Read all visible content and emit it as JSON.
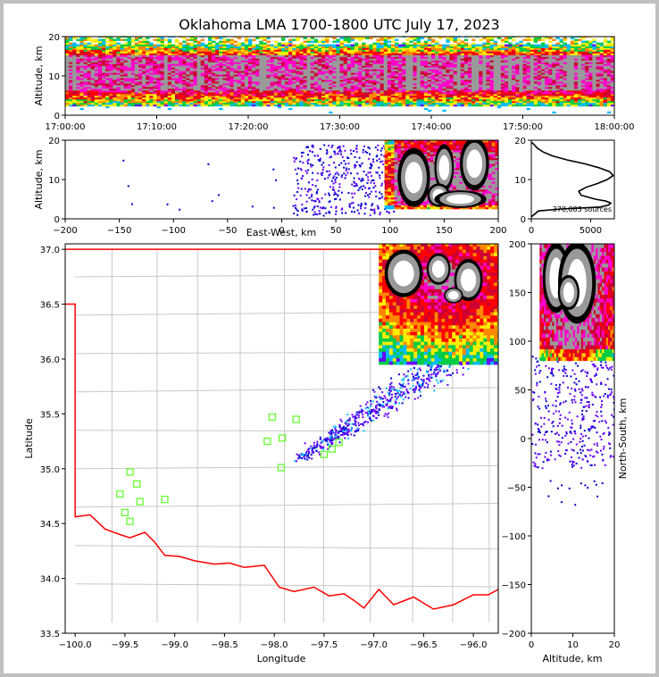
{
  "title": "Oklahoma LMA 1700-1800 UTC July 17, 2023",
  "colors": {
    "density_scale": [
      "#0000cc",
      "#6600ff",
      "#00bbff",
      "#00cc44",
      "#ffee00",
      "#ff8800",
      "#ff0000",
      "#cc0033",
      "#ff00cc",
      "#999999",
      "#000000",
      "#ffffff"
    ],
    "state_border": "#ff0000",
    "county_lines": "#c8c8c8",
    "station_marker": "#66ff33"
  },
  "chart_data": [
    {
      "id": "time-height",
      "type": "heatmap",
      "xlabel": "",
      "ylabel": "Altitude, km",
      "x_ticks": [
        "17:00:00",
        "17:10:00",
        "17:20:00",
        "17:30:00",
        "17:40:00",
        "17:50:00",
        "18:00:00"
      ],
      "y_ticks": [
        0,
        10,
        20
      ],
      "ylim": [
        0,
        20
      ],
      "source_band_km": [
        3,
        18
      ],
      "dense_core_km": [
        6,
        15
      ]
    },
    {
      "id": "east-west-altitude",
      "type": "heatmap",
      "xlabel": "East-West, km",
      "ylabel": "Altitude, km",
      "xlim": [
        -200,
        200
      ],
      "ylim": [
        0,
        20
      ],
      "x_ticks": [
        -200,
        -150,
        -100,
        -50,
        0,
        50,
        100,
        150,
        200
      ],
      "y_ticks": [
        0,
        10,
        20
      ],
      "storm_core_x_km": [
        95,
        200
      ],
      "core_altitude_km": [
        3,
        19
      ]
    },
    {
      "id": "altitude-histogram",
      "type": "line",
      "xlim": [
        0,
        7000
      ],
      "ylim": [
        0,
        20
      ],
      "x_ticks": [
        0,
        5000
      ],
      "y_ticks": [
        0,
        10,
        20
      ],
      "annotation": "378,083 sources",
      "profile": {
        "altitude_km": [
          0.5,
          2,
          2.5,
          3,
          3.5,
          4,
          4.5,
          5,
          6,
          7,
          8,
          9,
          10,
          11,
          12,
          13,
          14,
          15,
          16,
          17,
          18,
          19,
          19.5
        ],
        "count": [
          0,
          600,
          2500,
          5800,
          6500,
          6700,
          6300,
          5400,
          4200,
          4000,
          4600,
          5600,
          6400,
          6900,
          6600,
          5700,
          4500,
          3000,
          1800,
          1000,
          500,
          200,
          0
        ]
      }
    },
    {
      "id": "plan-view-map",
      "type": "heatmap",
      "xlabel": "Longitude",
      "ylabel": "Latitude",
      "xlim": [
        -100.1,
        -95.75
      ],
      "ylim": [
        33.5,
        37.05
      ],
      "x_ticks": [
        "-100.0",
        "-99.5",
        "-99.0",
        "-98.5",
        "-98.0",
        "-97.5",
        "-97.0",
        "-96.5",
        "-96.0"
      ],
      "y_ticks": [
        "33.5",
        "34.0",
        "34.5",
        "35.0",
        "35.5",
        "36.0",
        "36.5",
        "37.0"
      ],
      "stations_lonlat": [
        [
          -99.45,
          34.97
        ],
        [
          -99.38,
          34.86
        ],
        [
          -99.55,
          34.77
        ],
        [
          -99.35,
          34.7
        ],
        [
          -99.1,
          34.72
        ],
        [
          -99.5,
          34.6
        ],
        [
          -99.45,
          34.52
        ],
        [
          -98.02,
          35.47
        ],
        [
          -97.78,
          35.45
        ],
        [
          -98.07,
          35.25
        ],
        [
          -97.92,
          35.28
        ],
        [
          -97.93,
          35.01
        ],
        [
          -97.35,
          35.24
        ],
        [
          -97.5,
          35.13
        ],
        [
          -97.42,
          35.18
        ]
      ]
    },
    {
      "id": "north-south-altitude",
      "type": "heatmap",
      "xlabel": "Altitude, km",
      "ylabel": "North-South, km",
      "xlim": [
        0,
        20
      ],
      "ylim": [
        -200,
        200
      ],
      "x_ticks": [
        0,
        10,
        20
      ],
      "y_ticks": [
        -200,
        -150,
        -100,
        -50,
        0,
        50,
        100,
        150,
        200
      ],
      "storm_core_y_km": [
        80,
        200
      ]
    }
  ]
}
